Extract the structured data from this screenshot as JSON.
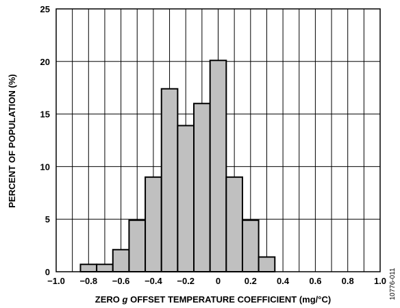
{
  "chart_data": {
    "type": "bar",
    "title": "",
    "xlabel": "ZERO g OFFSET TEMPERATURE COEFFICIENT (mg/°C)",
    "xlabel_parts": {
      "pre": "ZERO ",
      "italic": "g",
      "post": " OFFSET TEMPERATURE COEFFICIENT (mg/°C)"
    },
    "ylabel": "PERCENT OF POPULATION (%)",
    "xlim": [
      -1.0,
      1.0
    ],
    "ylim": [
      0,
      25
    ],
    "xticks": [
      -1.0,
      -0.8,
      -0.6,
      -0.4,
      -0.2,
      0,
      0.2,
      0.4,
      0.6,
      0.8,
      1.0
    ],
    "xtick_labels": [
      "−1.0",
      "−0.8",
      "−0.6",
      "−0.4",
      "−0.2",
      "0",
      "0.2",
      "0.4",
      "0.6",
      "0.8",
      "1.0"
    ],
    "yticks": [
      0,
      5,
      10,
      15,
      20,
      25
    ],
    "ytick_labels": [
      "0",
      "5",
      "10",
      "15",
      "20",
      "25"
    ],
    "grid": true,
    "bin_width": 0.1,
    "bars": [
      {
        "x0": -0.85,
        "x1": -0.75,
        "value": 0.7
      },
      {
        "x0": -0.75,
        "x1": -0.65,
        "value": 0.7
      },
      {
        "x0": -0.65,
        "x1": -0.55,
        "value": 2.1
      },
      {
        "x0": -0.55,
        "x1": -0.45,
        "value": 4.9
      },
      {
        "x0": -0.45,
        "x1": -0.35,
        "value": 9.0
      },
      {
        "x0": -0.35,
        "x1": -0.25,
        "value": 17.4
      },
      {
        "x0": -0.25,
        "x1": -0.15,
        "value": 13.9
      },
      {
        "x0": -0.15,
        "x1": -0.05,
        "value": 16.0
      },
      {
        "x0": -0.05,
        "x1": 0.05,
        "value": 20.1
      },
      {
        "x0": 0.05,
        "x1": 0.15,
        "value": 9.0
      },
      {
        "x0": 0.15,
        "x1": 0.25,
        "value": 4.9
      },
      {
        "x0": 0.25,
        "x1": 0.35,
        "value": 1.4
      }
    ],
    "colors": {
      "bar_fill": "#c0c0c0",
      "bar_stroke": "#000000",
      "grid": "#000000"
    }
  },
  "figure_id": "10776-011"
}
